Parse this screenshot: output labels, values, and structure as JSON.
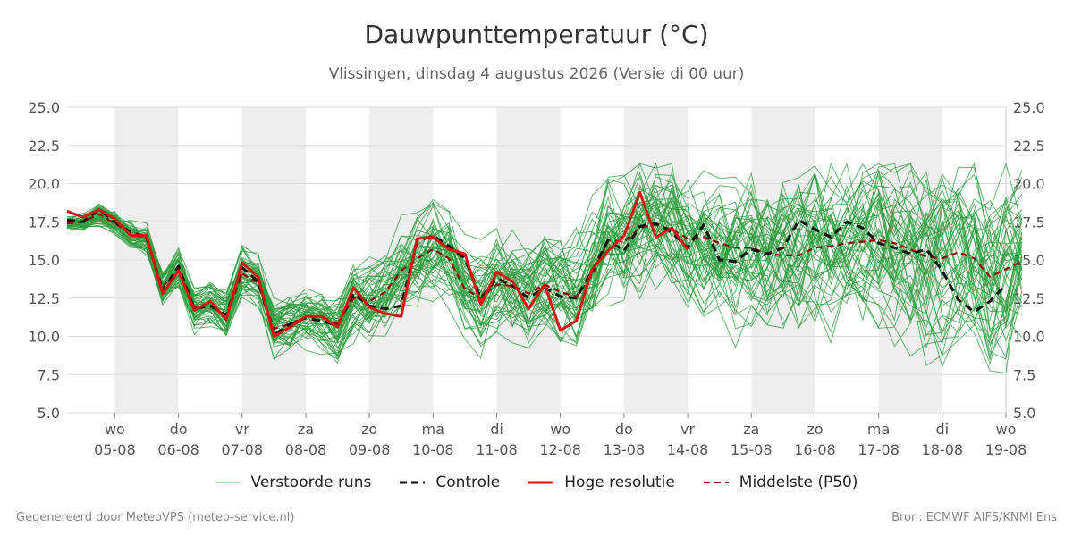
{
  "header": {
    "title": "Dauwpunttemperatuur (°C)",
    "subtitle": "Vlissingen, dinsdag  4 augustus 2026 (Versie di 00 uur)"
  },
  "legend": {
    "ensemble_label": "Verstoorde runs",
    "control_label": "Controle",
    "hires_label": "Hoge resolutie",
    "median_label": "Middelste (P50)"
  },
  "footer": {
    "left": "Gegenereerd door MeteoVPS (meteo-service.nl)",
    "right": "Bron: ECMWF AIFS/KNMI Ens"
  },
  "colors": {
    "ensemble": "#2e9e3e",
    "control": "#111111",
    "hires": "#dd1111",
    "median": "#8b0000",
    "night_band": "#eeeeee",
    "grid": "#dddddd"
  },
  "chart_data": {
    "type": "line",
    "title": "Dauwpunttemperatuur (°C)",
    "ylim": [
      5.0,
      25.0
    ],
    "y_ticks": [
      "25.0",
      "22.5",
      "20.0",
      "17.5",
      "15.0",
      "12.5",
      "10.0",
      "7.5",
      "5.0"
    ],
    "x_day_range": [
      4.25,
      19.0
    ],
    "x_ticks": [
      {
        "day": "wo",
        "date": "05-08"
      },
      {
        "day": "do",
        "date": "06-08"
      },
      {
        "day": "vr",
        "date": "07-08"
      },
      {
        "day": "za",
        "date": "08-08"
      },
      {
        "day": "zo",
        "date": "09-08"
      },
      {
        "day": "ma",
        "date": "10-08"
      },
      {
        "day": "di",
        "date": "11-08"
      },
      {
        "day": "wo",
        "date": "12-08"
      },
      {
        "day": "do",
        "date": "13-08"
      },
      {
        "day": "vr",
        "date": "14-08"
      },
      {
        "day": "za",
        "date": "15-08"
      },
      {
        "day": "zo",
        "date": "16-08"
      },
      {
        "day": "ma",
        "date": "17-08"
      },
      {
        "day": "di",
        "date": "18-08"
      },
      {
        "day": "wo",
        "date": "19-08"
      }
    ],
    "grid": true,
    "legend_position": "bottom",
    "x_step_hours": 6,
    "series": [
      {
        "name": "Hoge resolutie",
        "role": "hires",
        "values": [
          18.2,
          17.8,
          18.3,
          17.7,
          16.6,
          16.6,
          12.8,
          14.3,
          11.7,
          12.3,
          11.1,
          14.8,
          13.9,
          10.0,
          10.6,
          11.3,
          11.3,
          10.6,
          13.2,
          11.9,
          11.5,
          11.3,
          16.4,
          16.5,
          15.7,
          15.4,
          12.1,
          14.2,
          13.6,
          11.8,
          13.4,
          10.4,
          11.0,
          14.4,
          15.6,
          16.6,
          19.4,
          16.5,
          17.1,
          15.7
        ]
      },
      {
        "name": "Controle",
        "role": "control",
        "values": [
          17.6,
          17.5,
          18.3,
          17.5,
          16.8,
          16.5,
          12.9,
          14.6,
          11.8,
          12.0,
          11.4,
          14.5,
          13.6,
          10.1,
          10.8,
          11.2,
          11.0,
          10.7,
          12.8,
          12.0,
          11.8,
          12.0,
          16.2,
          16.6,
          15.9,
          15.1,
          12.5,
          13.8,
          13.3,
          12.5,
          13.2,
          12.6,
          12.5,
          14.3,
          16.3,
          15.6,
          17.2,
          17.4,
          16.8,
          15.8,
          17.3,
          15.0,
          14.9,
          15.7,
          15.4,
          15.8,
          17.6,
          17.0,
          16.5,
          17.5,
          17.1,
          16.1,
          15.8,
          15.4,
          15.7,
          14.3,
          12.4,
          11.6,
          12.3,
          13.4
        ]
      },
      {
        "name": "Middelste (P50)",
        "role": "median",
        "values": [
          17.4,
          17.5,
          18.0,
          17.4,
          16.7,
          16.4,
          13.2,
          14.5,
          11.9,
          12.1,
          11.3,
          14.1,
          13.5,
          10.5,
          10.8,
          11.3,
          11.3,
          10.8,
          12.5,
          12.3,
          12.9,
          14.3,
          15.1,
          15.7,
          15.1,
          13.1,
          12.5,
          13.4,
          13.3,
          12.8,
          13.4,
          12.9,
          12.6,
          14.0,
          16.3,
          16.2,
          17.1,
          17.3,
          17.0,
          16.4,
          16.5,
          16.1,
          15.8,
          15.8,
          15.4,
          15.3,
          15.3,
          15.8,
          15.9,
          16.1,
          16.2,
          16.3,
          16.1,
          15.7,
          15.2,
          15.1,
          15.5,
          15.1,
          13.9,
          14.4,
          14.9
        ]
      }
    ]
  }
}
